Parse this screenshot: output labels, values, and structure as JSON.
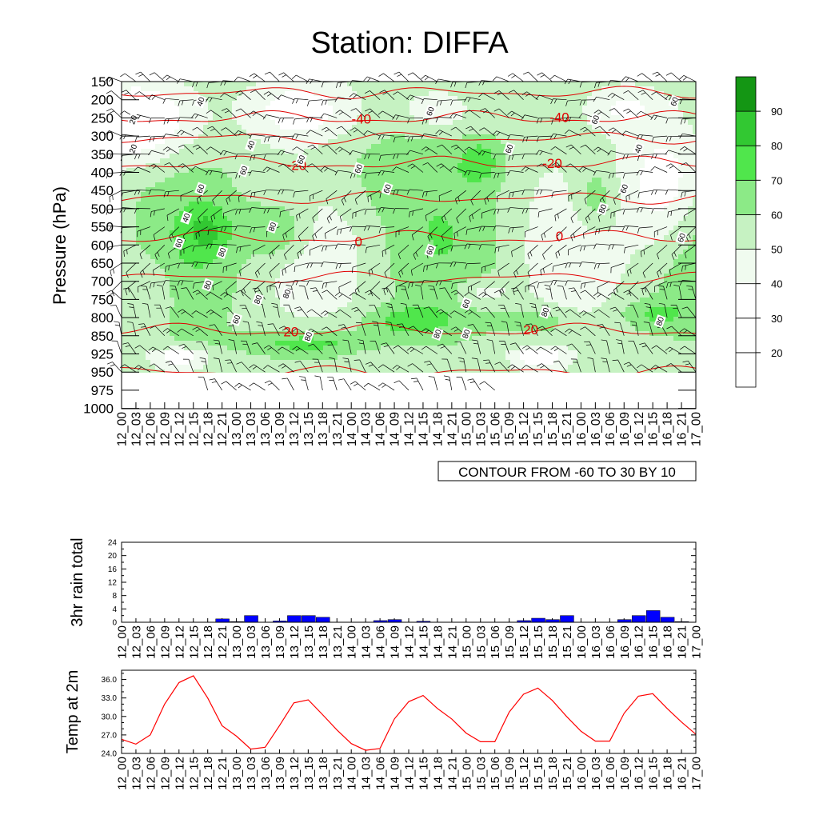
{
  "title": "Station: DIFFA",
  "times": [
    "12_00",
    "12_03",
    "12_06",
    "12_09",
    "12_12",
    "12_15",
    "12_18",
    "12_21",
    "13_00",
    "13_03",
    "13_06",
    "13_09",
    "13_12",
    "13_15",
    "13_18",
    "13_21",
    "14_00",
    "14_03",
    "14_06",
    "14_09",
    "14_12",
    "14_15",
    "14_18",
    "14_21",
    "15_00",
    "15_03",
    "15_06",
    "15_09",
    "15_12",
    "15_15",
    "15_18",
    "15_21",
    "16_00",
    "16_03",
    "16_06",
    "16_09",
    "16_12",
    "16_15",
    "16_18",
    "16_21",
    "17_00"
  ],
  "colors": {
    "contour": "#e00000",
    "rain_bar": "#0000ff",
    "temp_line": "#ff0000",
    "rh_scale": [
      "#ffffff",
      "#ffffff",
      "#ffffff",
      "#f0fbef",
      "#c6f2c2",
      "#8cea87",
      "#50e64c",
      "#32c832",
      "#149614"
    ]
  },
  "chart_data": [
    {
      "type": "heatmap",
      "name": "relative-humidity-cross-section",
      "ylabel": "Pressure (hPa)",
      "pressure_levels": [
        150,
        200,
        250,
        300,
        350,
        400,
        450,
        500,
        550,
        600,
        650,
        700,
        750,
        800,
        850,
        925,
        950,
        975,
        1000
      ],
      "colorbar_labels": [
        "20",
        "30",
        "40",
        "50",
        "60",
        "70",
        "80",
        "90"
      ],
      "colorbar_min": 10,
      "colorbar_max": 100,
      "info_box": "CONTOUR FROM -60 TO 30 BY 10",
      "temperature_contours": [
        {
          "value": -40,
          "pressure": 250
        },
        {
          "value": -20,
          "pressure": 375
        },
        {
          "value": 0,
          "pressure": 580
        },
        {
          "value": 20,
          "pressure": 835
        }
      ],
      "contour_labels": [
        {
          "text": "-40",
          "t": 16.7,
          "p": 252
        },
        {
          "text": "-40",
          "t": 30.5,
          "p": 248
        },
        {
          "text": "-20",
          "t": 12.2,
          "p": 380
        },
        {
          "text": "-20",
          "t": 30.0,
          "p": 375
        },
        {
          "text": "0",
          "t": 16.5,
          "p": 590
        },
        {
          "text": "0",
          "t": 30.5,
          "p": 575
        },
        {
          "text": "20",
          "t": 11.8,
          "p": 838
        },
        {
          "text": "20",
          "t": 28.5,
          "p": 833
        }
      ],
      "rh_labels": [
        {
          "text": "40",
          "t": 5.5,
          "p": 205
        },
        {
          "text": "20",
          "t": 0.8,
          "p": 255
        },
        {
          "text": "20",
          "t": 0.8,
          "p": 335
        },
        {
          "text": "40",
          "t": 9.0,
          "p": 325
        },
        {
          "text": "60",
          "t": 8.5,
          "p": 395
        },
        {
          "text": "60",
          "t": 12.5,
          "p": 365
        },
        {
          "text": "60",
          "t": 16.5,
          "p": 390
        },
        {
          "text": "60",
          "t": 21.5,
          "p": 232
        },
        {
          "text": "60",
          "t": 27.0,
          "p": 335
        },
        {
          "text": "60",
          "t": 33.0,
          "p": 255
        },
        {
          "text": "40",
          "t": 36.0,
          "p": 335
        },
        {
          "text": "60",
          "t": 38.5,
          "p": 205
        },
        {
          "text": "60",
          "t": 5.5,
          "p": 445
        },
        {
          "text": "60",
          "t": 18.5,
          "p": 445
        },
        {
          "text": "60",
          "t": 35.0,
          "p": 445
        },
        {
          "text": "40",
          "t": 4.5,
          "p": 525
        },
        {
          "text": "60",
          "t": 4.0,
          "p": 595
        },
        {
          "text": "80",
          "t": 7.0,
          "p": 620
        },
        {
          "text": "80",
          "t": 10.5,
          "p": 550
        },
        {
          "text": "60",
          "t": 21.5,
          "p": 615
        },
        {
          "text": "80",
          "t": 33.5,
          "p": 500
        },
        {
          "text": "60",
          "t": 39.0,
          "p": 580
        },
        {
          "text": "80",
          "t": 6.0,
          "p": 710
        },
        {
          "text": "80",
          "t": 9.5,
          "p": 750
        },
        {
          "text": "80",
          "t": 11.5,
          "p": 735
        },
        {
          "text": "60",
          "t": 24.0,
          "p": 762
        },
        {
          "text": "80",
          "t": 29.5,
          "p": 785
        },
        {
          "text": "80",
          "t": 37.5,
          "p": 810
        },
        {
          "text": "60",
          "t": 8.0,
          "p": 805
        },
        {
          "text": "80",
          "t": 13.0,
          "p": 853
        },
        {
          "text": "80",
          "t": 22.0,
          "p": 845
        },
        {
          "text": "80",
          "t": 24.0,
          "p": 845
        }
      ]
    },
    {
      "type": "bar",
      "name": "rain",
      "ylabel": "3hr rain total",
      "ylim": [
        0,
        24
      ],
      "yticks": [
        "0",
        "4",
        "8",
        "12",
        "16",
        "20",
        "24"
      ],
      "values": [
        0,
        0,
        0,
        0,
        0,
        0,
        0,
        1,
        0.2,
        2,
        0,
        0.4,
        2,
        2,
        1.5,
        0,
        0,
        0,
        0.5,
        0.8,
        0,
        0.3,
        0,
        0,
        0,
        0,
        0,
        0,
        0.5,
        1.2,
        0.8,
        2,
        0,
        0,
        0,
        0.8,
        2,
        3.5,
        1.5,
        0.2,
        0
      ]
    },
    {
      "type": "line",
      "name": "temperature",
      "ylabel": "Temp at 2m",
      "ylim": [
        24,
        37.5
      ],
      "yticks": [
        "24.0",
        "27.0",
        "30.0",
        "33.0",
        "36.0"
      ],
      "values": [
        26.3,
        25.5,
        27,
        32,
        35.5,
        36.6,
        33,
        28.5,
        26.8,
        24.7,
        25,
        28.5,
        32.2,
        32.7,
        30.3,
        27.8,
        25.6,
        24.5,
        24.8,
        29.6,
        32.4,
        33.4,
        31.3,
        29.6,
        27.3,
        25.9,
        25.9,
        30.7,
        33.6,
        34.6,
        32.6,
        30,
        27.6,
        26,
        26,
        30.5,
        33.3,
        33.7,
        31.3,
        29.1,
        27.1
      ]
    }
  ]
}
